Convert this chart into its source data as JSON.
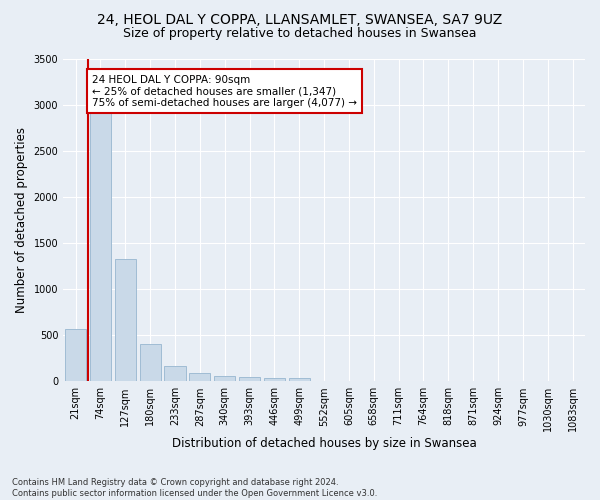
{
  "title_line1": "24, HEOL DAL Y COPPA, LLANSAMLET, SWANSEA, SA7 9UZ",
  "title_line2": "Size of property relative to detached houses in Swansea",
  "xlabel": "Distribution of detached houses by size in Swansea",
  "ylabel": "Number of detached properties",
  "footnote": "Contains HM Land Registry data © Crown copyright and database right 2024.\nContains public sector information licensed under the Open Government Licence v3.0.",
  "categories": [
    "21sqm",
    "74sqm",
    "127sqm",
    "180sqm",
    "233sqm",
    "287sqm",
    "340sqm",
    "393sqm",
    "446sqm",
    "499sqm",
    "552sqm",
    "605sqm",
    "658sqm",
    "711sqm",
    "764sqm",
    "818sqm",
    "871sqm",
    "924sqm",
    "977sqm",
    "1030sqm",
    "1083sqm"
  ],
  "values": [
    570,
    2920,
    1330,
    410,
    170,
    90,
    55,
    45,
    40,
    40,
    0,
    0,
    0,
    0,
    0,
    0,
    0,
    0,
    0,
    0,
    0
  ],
  "bar_color": "#c9d9e8",
  "bar_edge_color": "#a0bcd4",
  "property_line_color": "#cc0000",
  "annotation_text": "24 HEOL DAL Y COPPA: 90sqm\n← 25% of detached houses are smaller (1,347)\n75% of semi-detached houses are larger (4,077) →",
  "annotation_box_facecolor": "#ffffff",
  "annotation_box_edgecolor": "#cc0000",
  "ylim": [
    0,
    3500
  ],
  "yticks": [
    0,
    500,
    1000,
    1500,
    2000,
    2500,
    3000,
    3500
  ],
  "background_color": "#e8eef5",
  "grid_color": "#ffffff",
  "title_fontsize": 10,
  "subtitle_fontsize": 9,
  "axis_label_fontsize": 8.5,
  "tick_fontsize": 7,
  "footnote_fontsize": 6,
  "annotation_fontsize": 7.5
}
